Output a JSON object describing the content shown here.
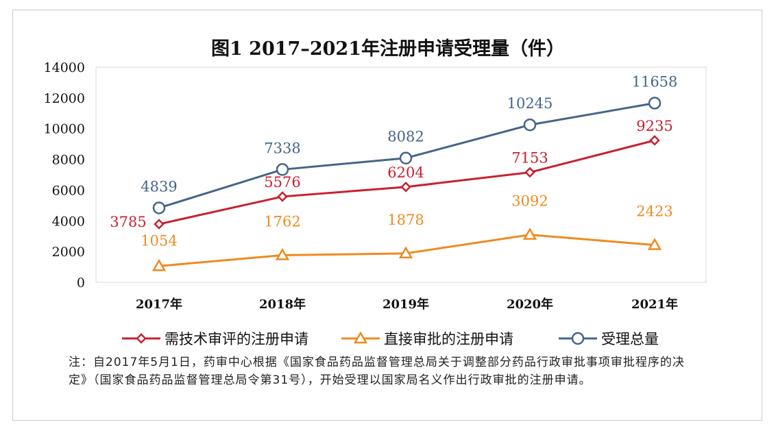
{
  "chart_data": {
    "type": "line",
    "title": "图1  2017–2021年注册申请受理量（件）",
    "categories": [
      "2017年",
      "2018年",
      "2019年",
      "2020年",
      "2021年"
    ],
    "ylim": [
      0,
      14000
    ],
    "yticks": [
      "0",
      "2000",
      "4000",
      "6000",
      "8000",
      "10000",
      "12000",
      "14000"
    ],
    "grid": false,
    "legend_position": "bottom",
    "series": [
      {
        "name": "需技术审评的注册申请",
        "values": [
          3785,
          5576,
          6204,
          7153,
          9235
        ],
        "color": "#c8202f",
        "marker": "diamond"
      },
      {
        "name": "直接审批的注册申请",
        "values": [
          1054,
          1762,
          1878,
          3092,
          2423
        ],
        "color": "#ee8a1e",
        "marker": "triangle"
      },
      {
        "name": "受理总量",
        "values": [
          4839,
          7338,
          8082,
          10245,
          11658
        ],
        "color": "#46648a",
        "marker": "circle"
      }
    ]
  },
  "note": "注：自2017年5月1日，药审中心根据《国家食品药品监督管理总局关于调整部分药品行政审批事项审批程序的决定》（国家食品药品监督管理总局令第31号），开始受理以国家局名义作出行政审批的注册申请。"
}
